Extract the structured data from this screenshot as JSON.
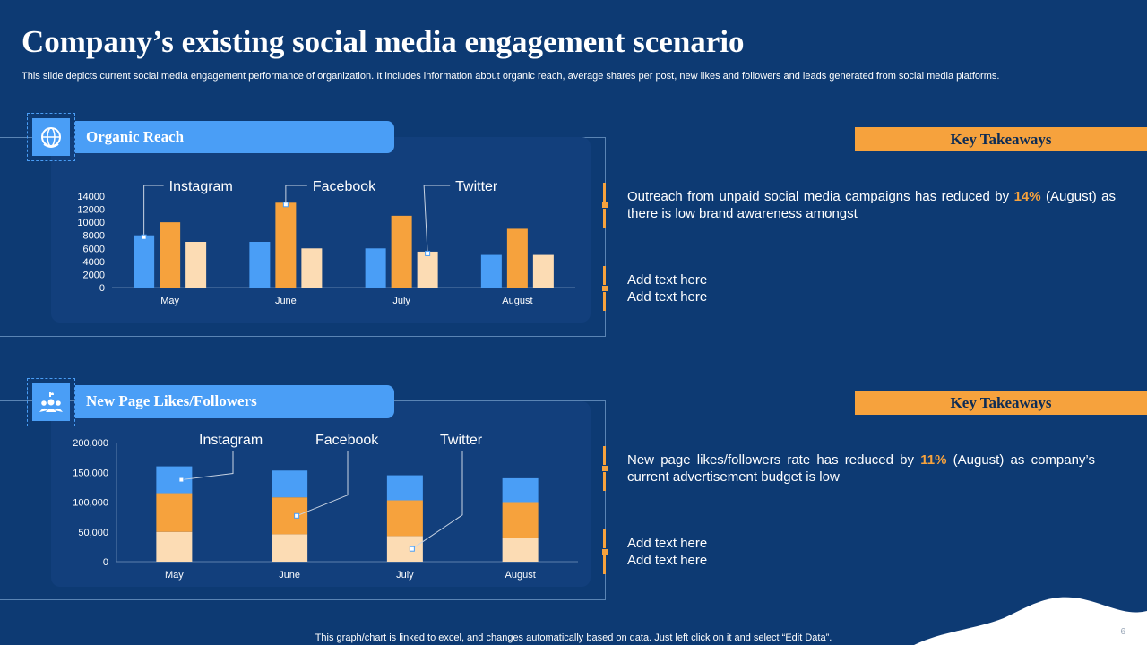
{
  "title": "Company’s existing social media engagement scenario",
  "subtitle": "This slide depicts current social media engagement performance of organization. It includes information about organic reach, average shares per post, new likes and followers and leads generated from social media platforms.",
  "sections": [
    {
      "label": "Organic Reach",
      "icon": "globe-hand-icon",
      "key_takeaways_title": "Key Takeaways",
      "takeaway_pre": "Outreach from unpaid social media campaigns has reduced by ",
      "takeaway_highlight": "14%",
      "takeaway_post": " (August) as there is low brand awareness amongst",
      "add_text_1": "Add text here",
      "add_text_2": "Add text here"
    },
    {
      "label": "New Page Likes/Followers",
      "icon": "users-like-icon",
      "key_takeaways_title": "Key Takeaways",
      "takeaway_pre": "New page likes/followers rate has reduced by ",
      "takeaway_highlight": "11%",
      "takeaway_post": " (August) as company’s current advertisement budget is low",
      "add_text_1": "Add text here",
      "add_text_2": "Add text here"
    }
  ],
  "chart_data": [
    {
      "type": "bar",
      "categories": [
        "May",
        "June",
        "July",
        "August"
      ],
      "series": [
        {
          "name": "Instagram",
          "values": [
            8000,
            7000,
            6000,
            5000
          ]
        },
        {
          "name": "Facebook",
          "values": [
            10000,
            13000,
            11000,
            9000
          ]
        },
        {
          "name": "Twitter",
          "values": [
            7000,
            6000,
            5500,
            5000
          ]
        }
      ],
      "ylim": [
        0,
        14000
      ],
      "yticks": [
        "0",
        "2000",
        "4000",
        "6000",
        "8000",
        "10000",
        "12000",
        "14000"
      ],
      "title": "",
      "xlabel": "",
      "ylabel": ""
    },
    {
      "type": "bar",
      "stacked": true,
      "categories": [
        "May",
        "June",
        "July",
        "August"
      ],
      "series": [
        {
          "name": "Twitter",
          "values": [
            50000,
            46000,
            43000,
            40000
          ]
        },
        {
          "name": "Facebook",
          "values": [
            65000,
            62000,
            60000,
            60000
          ]
        },
        {
          "name": "Instagram",
          "values": [
            45000,
            45000,
            42000,
            40000
          ]
        }
      ],
      "ylim": [
        0,
        200000
      ],
      "yticks": [
        "0",
        "50,000",
        "100,000",
        "150,000",
        "200,000"
      ],
      "title": "",
      "xlabel": "",
      "ylabel": ""
    }
  ],
  "colors": {
    "background": "#0d3a73",
    "panel": "#123f7c",
    "instagram": "#4a9ef6",
    "facebook": "#f6a23d",
    "twitter": "#fcdcb4",
    "accent": "#f6a23d"
  },
  "footer": "This graph/chart is linked to excel,  and changes automatically based on data. Just left click on it and select “Edit Data”.",
  "page_number": "6"
}
